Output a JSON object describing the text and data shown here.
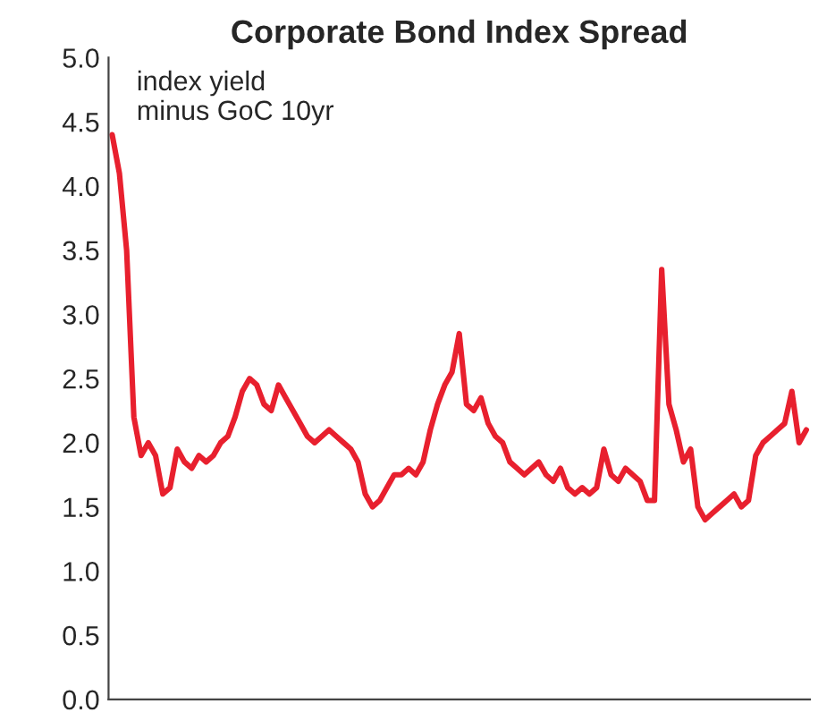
{
  "chart_data": {
    "type": "line",
    "title": "Corporate Bond Index Spread",
    "annotations": [
      "index yield\nminus GoC 10yr"
    ],
    "categories": [
      null,
      null,
      null,
      null,
      null,
      null,
      null,
      null,
      null,
      null,
      null,
      null,
      null,
      null,
      null,
      null,
      null,
      null,
      null,
      null,
      null,
      null,
      null,
      null,
      null,
      null,
      null,
      null,
      null,
      null,
      null,
      null,
      null,
      null,
      null,
      null,
      null,
      null,
      null,
      null,
      null,
      null,
      null,
      null,
      null,
      null,
      null,
      null,
      null,
      null,
      null,
      null,
      null,
      null,
      null,
      null,
      null,
      null,
      null,
      null,
      null,
      null,
      null,
      null,
      null,
      null,
      null,
      null,
      null,
      null,
      null,
      null,
      null,
      null,
      null,
      null,
      null,
      null,
      null,
      null,
      null,
      null,
      null,
      null,
      null,
      null,
      null,
      null,
      null,
      null,
      null,
      null,
      null,
      null,
      null,
      null,
      null
    ],
    "series": [
      {
        "color": "#e8202e",
        "values": [
          4.4,
          4.1,
          3.5,
          2.2,
          1.9,
          2.0,
          1.9,
          1.6,
          1.65,
          1.95,
          1.85,
          1.8,
          1.9,
          1.85,
          1.9,
          2.0,
          2.05,
          2.2,
          2.4,
          2.5,
          2.45,
          2.3,
          2.25,
          2.45,
          2.35,
          2.25,
          2.15,
          2.05,
          2.0,
          2.05,
          2.1,
          2.05,
          2.0,
          1.95,
          1.85,
          1.6,
          1.5,
          1.55,
          1.65,
          1.75,
          1.75,
          1.8,
          1.75,
          1.85,
          2.1,
          2.3,
          2.45,
          2.55,
          2.85,
          2.3,
          2.25,
          2.35,
          2.15,
          2.05,
          2.0,
          1.85,
          1.8,
          1.75,
          1.8,
          1.85,
          1.75,
          1.7,
          1.8,
          1.65,
          1.6,
          1.65,
          1.6,
          1.65,
          1.95,
          1.75,
          1.7,
          1.8,
          1.75,
          1.7,
          1.55,
          1.55,
          3.35,
          2.3,
          2.1,
          1.85,
          1.95,
          1.5,
          1.4,
          1.45,
          1.5,
          1.55,
          1.6,
          1.5,
          1.55,
          1.9,
          2.0,
          2.05,
          2.1,
          2.15,
          2.4,
          2.0,
          2.1
        ]
      }
    ],
    "ylim": [
      0,
      5
    ],
    "yticks": [
      {
        "value": 0,
        "label": "0.0"
      },
      {
        "value": 0.5,
        "label": "0.5"
      },
      {
        "value": 1,
        "label": "1.0"
      },
      {
        "value": 1.5,
        "label": "1.5"
      },
      {
        "value": 2,
        "label": "2.0"
      },
      {
        "value": 2.5,
        "label": "2.5"
      },
      {
        "value": 3,
        "label": "3.0"
      },
      {
        "value": 3.5,
        "label": "3.5"
      },
      {
        "value": 4,
        "label": "4.0"
      },
      {
        "value": 4.5,
        "label": "4.5"
      },
      {
        "value": 5,
        "label": "5.0"
      }
    ],
    "tick_labels": "y",
    "grid": false,
    "legend": false
  }
}
